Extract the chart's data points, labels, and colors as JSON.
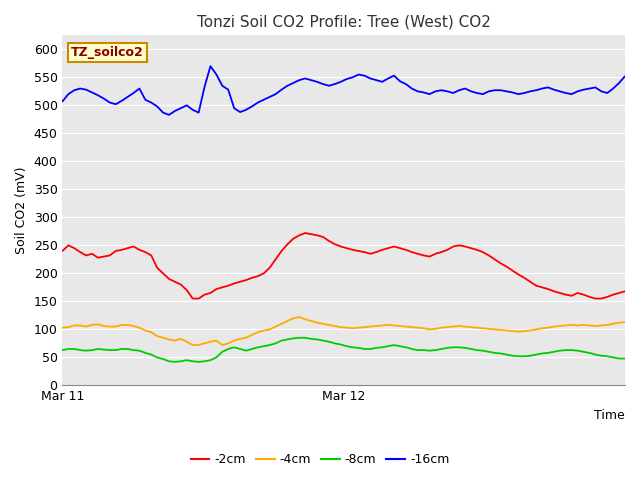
{
  "title": "Tonzi Soil CO2 Profile: Tree (West) CO2",
  "ylabel": "Soil CO2 (mV)",
  "xlabel": "Time",
  "ylim": [
    0,
    625
  ],
  "yticks": [
    0,
    50,
    100,
    150,
    200,
    250,
    300,
    350,
    400,
    450,
    500,
    550,
    600
  ],
  "xtick_labels": [
    "Mar 11",
    "Mar 12"
  ],
  "legend_label": "TZ_soilco2",
  "legend_entries": [
    "-2cm",
    "-4cm",
    "-8cm",
    "-16cm"
  ],
  "legend_colors": [
    "#ff0000",
    "#ffaa00",
    "#00cc00",
    "#0000ff"
  ],
  "fig_bg_color": "#ffffff",
  "plot_bg_color": "#e8e8e8",
  "grid_color": "#ffffff",
  "n_points": 96,
  "series_2cm": [
    240,
    250,
    245,
    238,
    232,
    235,
    228,
    230,
    232,
    240,
    242,
    245,
    248,
    242,
    238,
    232,
    210,
    200,
    190,
    185,
    180,
    170,
    155,
    155,
    162,
    165,
    172,
    175,
    178,
    182,
    185,
    188,
    192,
    195,
    200,
    210,
    225,
    240,
    252,
    262,
    268,
    272,
    270,
    268,
    265,
    258,
    252,
    248,
    245,
    242,
    240,
    238,
    235,
    238,
    242,
    245,
    248,
    245,
    242,
    238,
    235,
    232,
    230,
    235,
    238,
    242,
    248,
    250,
    248,
    245,
    242,
    238,
    232,
    225,
    218,
    212,
    205,
    198,
    192,
    185,
    178,
    175,
    172,
    168,
    165,
    162,
    160,
    165,
    162,
    158,
    155,
    155,
    158,
    162,
    165,
    168
  ],
  "series_4cm": [
    103,
    104,
    107,
    107,
    105,
    108,
    109,
    106,
    105,
    105,
    108,
    108,
    106,
    103,
    98,
    95,
    88,
    85,
    82,
    80,
    83,
    78,
    72,
    72,
    75,
    78,
    80,
    72,
    75,
    80,
    83,
    85,
    90,
    95,
    98,
    100,
    105,
    110,
    115,
    120,
    122,
    118,
    115,
    112,
    110,
    108,
    106,
    104,
    103,
    102,
    103,
    104,
    105,
    106,
    107,
    108,
    107,
    106,
    105,
    104,
    103,
    102,
    100,
    101,
    103,
    104,
    105,
    106,
    105,
    104,
    103,
    102,
    101,
    100,
    99,
    98,
    97,
    96,
    97,
    98,
    100,
    102,
    103,
    105,
    106,
    107,
    108,
    107,
    108,
    107,
    106,
    107,
    108,
    110,
    112,
    113
  ],
  "series_8cm": [
    63,
    65,
    65,
    63,
    62,
    63,
    65,
    64,
    63,
    63,
    65,
    65,
    63,
    62,
    58,
    55,
    50,
    47,
    43,
    42,
    43,
    45,
    43,
    42,
    43,
    45,
    50,
    60,
    65,
    68,
    65,
    62,
    65,
    68,
    70,
    72,
    75,
    80,
    82,
    84,
    85,
    85,
    83,
    82,
    80,
    78,
    75,
    73,
    70,
    68,
    67,
    65,
    65,
    67,
    68,
    70,
    72,
    70,
    68,
    65,
    63,
    63,
    62,
    63,
    65,
    67,
    68,
    68,
    67,
    65,
    63,
    62,
    60,
    58,
    57,
    55,
    53,
    52,
    52,
    53,
    55,
    57,
    58,
    60,
    62,
    63,
    63,
    62,
    60,
    58,
    55,
    53,
    52,
    50,
    48,
    48
  ],
  "series_16cm": [
    507,
    520,
    527,
    530,
    528,
    523,
    518,
    512,
    505,
    502,
    508,
    515,
    522,
    530,
    510,
    505,
    498,
    487,
    483,
    490,
    495,
    500,
    492,
    487,
    533,
    570,
    555,
    535,
    528,
    495,
    488,
    492,
    498,
    505,
    510,
    515,
    520,
    528,
    535,
    540,
    545,
    548,
    545,
    542,
    538,
    535,
    538,
    542,
    547,
    550,
    555,
    553,
    548,
    545,
    542,
    548,
    553,
    543,
    538,
    530,
    525,
    523,
    520,
    525,
    527,
    525,
    522,
    527,
    530,
    525,
    522,
    520,
    525,
    527,
    527,
    525,
    523,
    520,
    522,
    525,
    527,
    530,
    532,
    528,
    525,
    522,
    520,
    525,
    528,
    530,
    532,
    525,
    522,
    530,
    540,
    552
  ]
}
